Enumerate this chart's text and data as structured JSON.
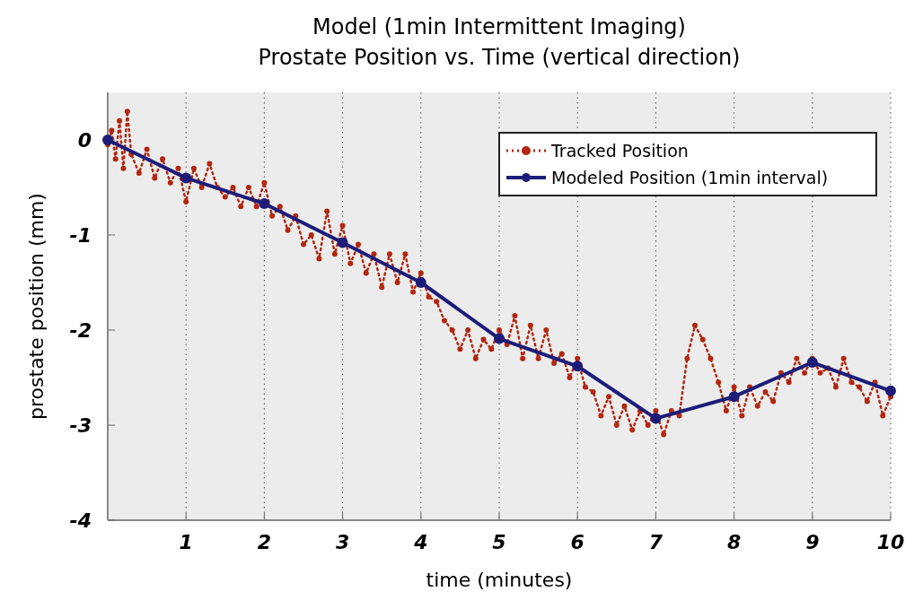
{
  "chart_data": {
    "type": "line",
    "title": "Model (1min Intermittent Imaging)",
    "subtitle": "Prostate Position vs. Time (vertical direction)",
    "xlabel": "time (minutes)",
    "ylabel": "prostate position (mm)",
    "xlim": [
      0,
      10
    ],
    "xticks": [
      1,
      2,
      3,
      4,
      5,
      6,
      7,
      8,
      9,
      10
    ],
    "ylim": [
      -4,
      0.5
    ],
    "yticks": [
      -4,
      -3,
      -2,
      -1,
      0
    ],
    "grid": "x",
    "legend": "top right",
    "series": [
      {
        "name": "Tracked Position",
        "color": "#b3260f",
        "line_style": "dotted",
        "marker": "circle",
        "x": [
          0,
          0.05,
          0.1,
          0.15,
          0.2,
          0.25,
          0.3,
          0.4,
          0.5,
          0.6,
          0.7,
          0.8,
          0.9,
          1.0,
          1.1,
          1.2,
          1.3,
          1.4,
          1.5,
          1.6,
          1.7,
          1.8,
          1.9,
          2.0,
          2.1,
          2.2,
          2.3,
          2.4,
          2.5,
          2.6,
          2.7,
          2.8,
          2.9,
          3.0,
          3.1,
          3.2,
          3.3,
          3.4,
          3.5,
          3.6,
          3.7,
          3.8,
          3.9,
          4.0,
          4.1,
          4.2,
          4.3,
          4.4,
          4.5,
          4.6,
          4.7,
          4.8,
          4.9,
          5.0,
          5.1,
          5.2,
          5.3,
          5.4,
          5.5,
          5.6,
          5.7,
          5.8,
          5.9,
          6.0,
          6.1,
          6.2,
          6.3,
          6.4,
          6.5,
          6.6,
          6.7,
          6.8,
          6.9,
          7.0,
          7.1,
          7.2,
          7.3,
          7.4,
          7.5,
          7.6,
          7.7,
          7.8,
          7.9,
          8.0,
          8.1,
          8.2,
          8.3,
          8.4,
          8.5,
          8.6,
          8.7,
          8.8,
          8.9,
          9.0,
          9.1,
          9.2,
          9.3,
          9.4,
          9.5,
          9.6,
          9.7,
          9.8,
          9.9,
          10.0
        ],
        "values": [
          -0.05,
          0.1,
          -0.2,
          0.2,
          -0.3,
          0.3,
          -0.15,
          -0.35,
          -0.1,
          -0.4,
          -0.2,
          -0.45,
          -0.3,
          -0.65,
          -0.3,
          -0.5,
          -0.25,
          -0.5,
          -0.6,
          -0.5,
          -0.7,
          -0.5,
          -0.7,
          -0.45,
          -0.8,
          -0.7,
          -0.95,
          -0.8,
          -1.1,
          -1.0,
          -1.25,
          -0.75,
          -1.2,
          -0.9,
          -1.3,
          -1.1,
          -1.4,
          -1.2,
          -1.55,
          -1.2,
          -1.5,
          -1.2,
          -1.6,
          -1.4,
          -1.65,
          -1.7,
          -1.9,
          -2.0,
          -2.2,
          -2.0,
          -2.3,
          -2.1,
          -2.2,
          -2.0,
          -2.15,
          -1.85,
          -2.3,
          -1.95,
          -2.3,
          -2.0,
          -2.35,
          -2.25,
          -2.5,
          -2.3,
          -2.6,
          -2.65,
          -2.9,
          -2.7,
          -3.0,
          -2.8,
          -3.05,
          -2.85,
          -3.0,
          -2.85,
          -3.1,
          -2.85,
          -2.9,
          -2.3,
          -1.95,
          -2.1,
          -2.3,
          -2.55,
          -2.85,
          -2.6,
          -2.9,
          -2.6,
          -2.8,
          -2.65,
          -2.75,
          -2.45,
          -2.55,
          -2.3,
          -2.45,
          -2.3,
          -2.45,
          -2.4,
          -2.6,
          -2.3,
          -2.55,
          -2.6,
          -2.75,
          -2.55,
          -2.9,
          -2.7
        ]
      },
      {
        "name": "Modeled Position (1min interval)",
        "color": "#1c1c78",
        "line_style": "solid",
        "marker": "circle",
        "x": [
          0,
          1,
          2,
          3,
          4,
          5,
          6,
          7,
          8,
          9,
          10
        ],
        "values": [
          0,
          -0.4,
          -0.67,
          -1.08,
          -1.5,
          -2.09,
          -2.38,
          -2.93,
          -2.7,
          -2.34,
          -2.64
        ]
      }
    ]
  }
}
